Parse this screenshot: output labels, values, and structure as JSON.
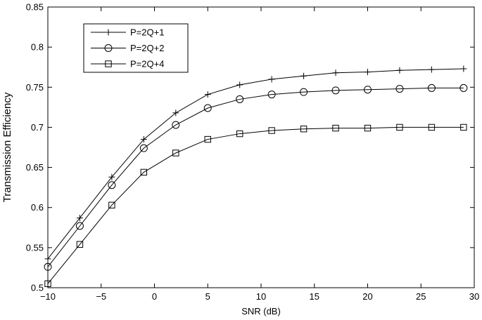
{
  "chart_data": {
    "type": "line",
    "xlabel": "SNR (dB)",
    "ylabel": "Transmission Efficiency",
    "xlim": [
      -10,
      30
    ],
    "ylim": [
      0.5,
      0.85
    ],
    "xticks": [
      -10,
      -5,
      0,
      5,
      10,
      15,
      20,
      25,
      30
    ],
    "xtick_labels": [
      "−10",
      "−5",
      "0",
      "5",
      "10",
      "15",
      "20",
      "25",
      "30"
    ],
    "yticks": [
      0.5,
      0.55,
      0.6,
      0.65,
      0.7,
      0.75,
      0.8,
      0.85
    ],
    "ytick_labels": [
      "0.5",
      "0.55",
      "0.6",
      "0.65",
      "0.7",
      "0.75",
      "0.8",
      "0.85"
    ],
    "grid": false,
    "legend_position": "top-left",
    "x": [
      -10,
      -7,
      -4,
      -1,
      2,
      5,
      8,
      11,
      14,
      17,
      20,
      23,
      26,
      29
    ],
    "series": [
      {
        "name": "P=2Q+1",
        "marker": "plus",
        "values": [
          0.536,
          0.587,
          0.638,
          0.685,
          0.718,
          0.741,
          0.753,
          0.76,
          0.764,
          0.768,
          0.769,
          0.771,
          0.772,
          0.773
        ]
      },
      {
        "name": "P=2Q+2",
        "marker": "circle",
        "values": [
          0.526,
          0.577,
          0.628,
          0.674,
          0.703,
          0.724,
          0.735,
          0.741,
          0.744,
          0.746,
          0.747,
          0.748,
          0.749,
          0.749
        ]
      },
      {
        "name": "P=2Q+4",
        "marker": "square",
        "values": [
          0.505,
          0.554,
          0.603,
          0.644,
          0.668,
          0.685,
          0.692,
          0.696,
          0.698,
          0.699,
          0.699,
          0.7,
          0.7,
          0.7
        ]
      }
    ],
    "colors": {
      "line": "#000000",
      "background": "#ffffff"
    }
  }
}
